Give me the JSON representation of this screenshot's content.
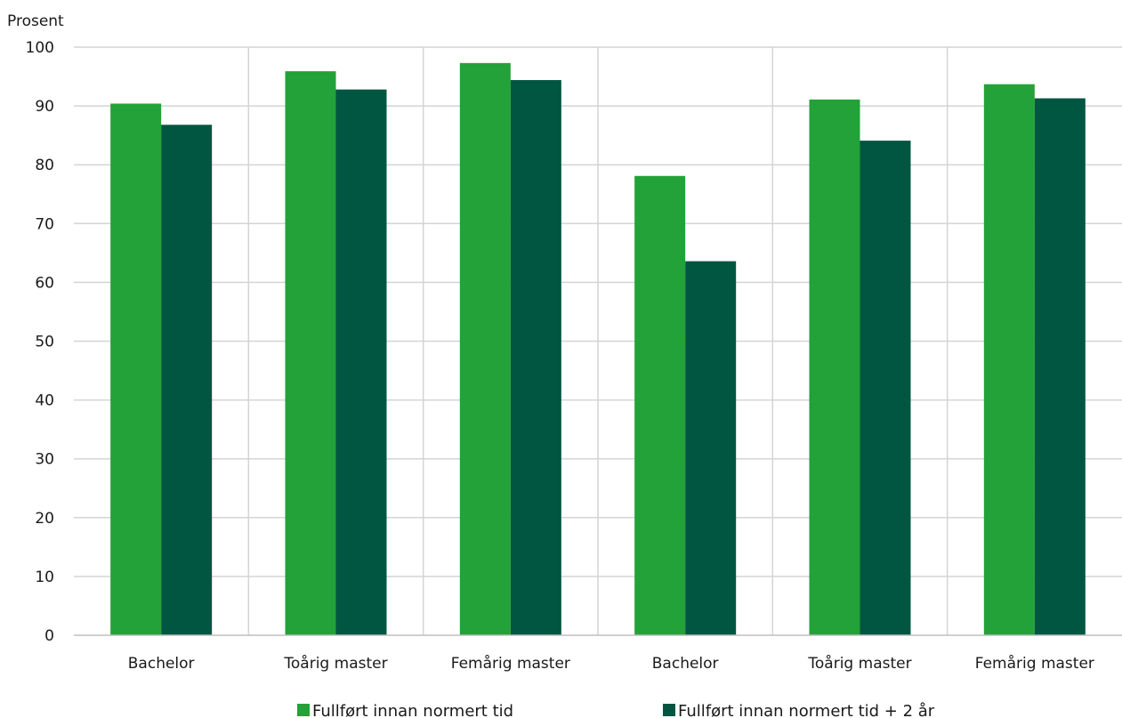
{
  "chart_data": {
    "type": "bar",
    "ylabel": "Prosent",
    "ylim": [
      0,
      100
    ],
    "yticks": [
      0,
      10,
      20,
      30,
      40,
      50,
      60,
      70,
      80,
      90,
      100
    ],
    "categories": [
      "Bachelor",
      "Toårig master",
      "Femårig master",
      "Bachelor",
      "Toårig master",
      "Femårig master"
    ],
    "series": [
      {
        "name": "Fullført innan normert tid",
        "color": "#22a238",
        "values": [
          90.4,
          95.9,
          97.3,
          78.1,
          91.1,
          93.7
        ]
      },
      {
        "name": "Fullført innan normert tid + 2 år",
        "color": "#005641",
        "values": [
          86.8,
          92.8,
          94.4,
          63.6,
          84.1,
          91.3
        ]
      }
    ],
    "grid": true,
    "legend_position": "bottom"
  }
}
